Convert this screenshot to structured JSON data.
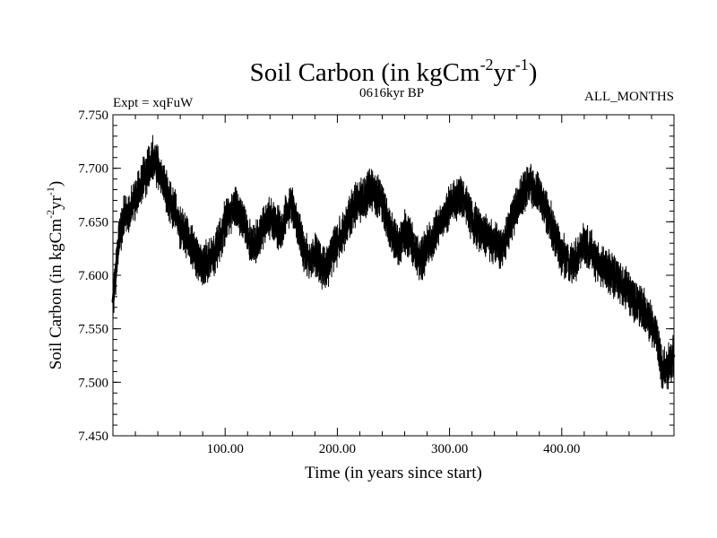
{
  "chart_data": {
    "type": "line",
    "title_main": "Soil Carbon (in kgCm",
    "title_sup1": "-2",
    "title_mid": "yr",
    "title_sup2": "-1",
    "title_end": ")",
    "experiment": "Expt = xqFuW",
    "period": "0616kyr BP",
    "months": "ALL_MONTHS",
    "xlabel": "Time (in years since start)",
    "ylabel_main": "Soil Carbon (in kgCm",
    "ylabel_sup1": "-2",
    "ylabel_mid": "yr",
    "ylabel_sup2": "-1",
    "ylabel_end": ")",
    "xlim": [
      0,
      500
    ],
    "ylim": [
      7.45,
      7.75
    ],
    "xticks": [
      100,
      200,
      300,
      400
    ],
    "xtick_labels": [
      "100.00",
      "200.00",
      "300.00",
      "400.00"
    ],
    "yticks": [
      7.45,
      7.5,
      7.55,
      7.6,
      7.65,
      7.7,
      7.75
    ],
    "ytick_labels": [
      "7.450",
      "7.500",
      "7.550",
      "7.600",
      "7.650",
      "7.700",
      "7.750"
    ],
    "series_color": "#000000",
    "series": [
      {
        "name": "Soil Carbon",
        "x": [
          0,
          5,
          10,
          15,
          20,
          25,
          30,
          35,
          40,
          45,
          50,
          55,
          60,
          65,
          70,
          75,
          80,
          85,
          90,
          95,
          100,
          105,
          110,
          115,
          120,
          125,
          130,
          135,
          140,
          145,
          150,
          155,
          160,
          165,
          170,
          175,
          180,
          185,
          190,
          195,
          200,
          205,
          210,
          215,
          220,
          225,
          230,
          235,
          240,
          245,
          250,
          255,
          260,
          265,
          270,
          275,
          280,
          285,
          290,
          295,
          300,
          305,
          310,
          315,
          320,
          325,
          330,
          335,
          340,
          345,
          350,
          355,
          360,
          365,
          370,
          375,
          380,
          385,
          390,
          395,
          400,
          405,
          410,
          415,
          420,
          425,
          430,
          435,
          440,
          445,
          450,
          455,
          460,
          465,
          470,
          475,
          480,
          485,
          490,
          495,
          500
        ],
        "y": [
          7.575,
          7.63,
          7.655,
          7.66,
          7.67,
          7.685,
          7.695,
          7.71,
          7.7,
          7.685,
          7.67,
          7.66,
          7.645,
          7.635,
          7.63,
          7.615,
          7.61,
          7.615,
          7.62,
          7.63,
          7.65,
          7.66,
          7.665,
          7.655,
          7.635,
          7.625,
          7.635,
          7.645,
          7.655,
          7.65,
          7.64,
          7.66,
          7.665,
          7.645,
          7.625,
          7.615,
          7.62,
          7.61,
          7.605,
          7.62,
          7.63,
          7.64,
          7.655,
          7.665,
          7.67,
          7.675,
          7.68,
          7.675,
          7.67,
          7.65,
          7.635,
          7.63,
          7.64,
          7.635,
          7.62,
          7.615,
          7.625,
          7.635,
          7.645,
          7.655,
          7.665,
          7.67,
          7.675,
          7.665,
          7.65,
          7.645,
          7.64,
          7.635,
          7.63,
          7.625,
          7.635,
          7.65,
          7.665,
          7.675,
          7.685,
          7.68,
          7.675,
          7.66,
          7.65,
          7.635,
          7.62,
          7.615,
          7.61,
          7.62,
          7.63,
          7.625,
          7.615,
          7.61,
          7.605,
          7.6,
          7.595,
          7.59,
          7.585,
          7.575,
          7.57,
          7.565,
          7.555,
          7.54,
          7.51,
          7.515,
          7.525
        ]
      }
    ]
  }
}
